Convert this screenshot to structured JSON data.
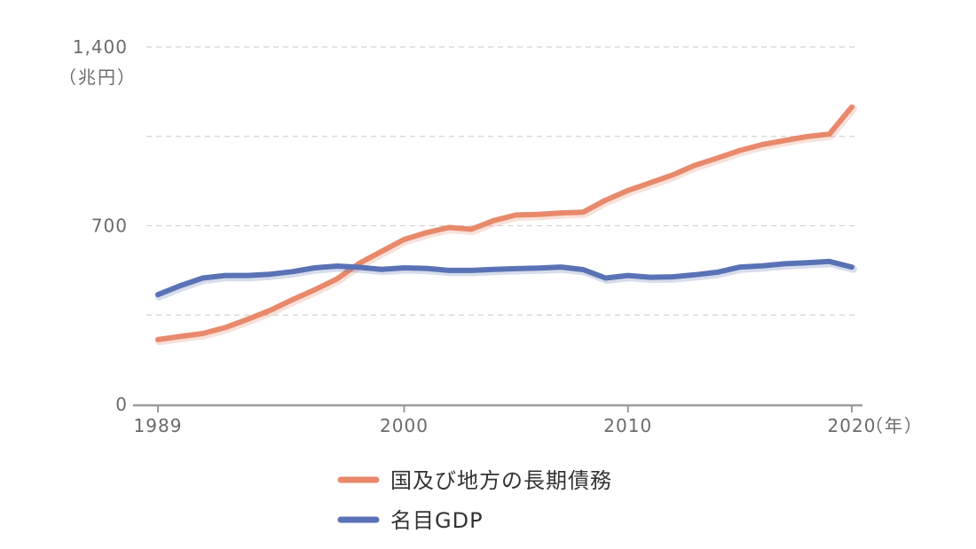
{
  "chart_data": {
    "type": "line",
    "y_unit_label": "（兆円）",
    "x_unit_label": "（年）",
    "xlim": [
      1989,
      2020
    ],
    "ylim": [
      0,
      1400
    ],
    "y_ticks": [
      0,
      700,
      1400
    ],
    "y_tick_labels": [
      "0",
      "700",
      "1,400"
    ],
    "y_gridlines": [
      350,
      700,
      1050,
      1400
    ],
    "x_ticks": [
      1989,
      2000,
      2010,
      2020
    ],
    "x_tick_labels": [
      "1989",
      "2000",
      "2010",
      "2020"
    ],
    "grid": "horizontal dashed",
    "legend_position": "bottom-center",
    "x": [
      1989,
      1990,
      1991,
      1992,
      1993,
      1994,
      1995,
      1996,
      1997,
      1998,
      1999,
      2000,
      2001,
      2002,
      2003,
      2004,
      2005,
      2006,
      2007,
      2008,
      2009,
      2010,
      2011,
      2012,
      2013,
      2014,
      2015,
      2016,
      2017,
      2018,
      2019,
      2020
    ],
    "series": [
      {
        "name": "国及び地方の長期債務",
        "color": "#e8896b",
        "values": [
          254,
          266,
          278,
          301,
          333,
          368,
          410,
          449,
          492,
          553,
          600,
          646,
          673,
          693,
          686,
          720,
          742,
          744,
          750,
          753,
          800,
          838,
          868,
          899,
          937,
          965,
          995,
          1018,
          1034,
          1049,
          1059,
          1165
        ]
      },
      {
        "name": "名目GDP",
        "color": "#5a72b5",
        "values": [
          430,
          465,
          495,
          505,
          505,
          510,
          520,
          535,
          542,
          537,
          529,
          535,
          533,
          525,
          525,
          529,
          532,
          534,
          538,
          528,
          495,
          505,
          498,
          500,
          508,
          518,
          538,
          543,
          551,
          555,
          560,
          538
        ]
      }
    ]
  }
}
